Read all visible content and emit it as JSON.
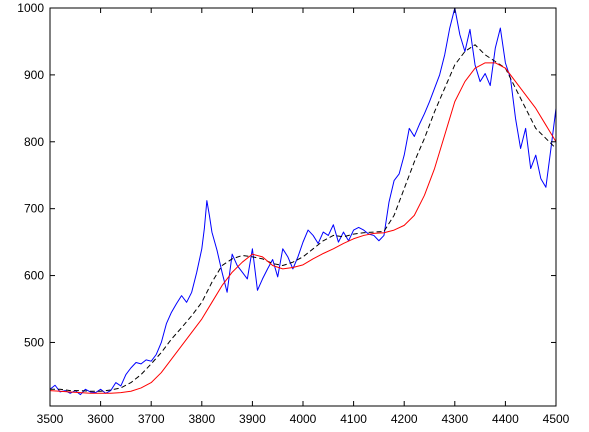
{
  "chart_data": {
    "type": "line",
    "title": "",
    "xlabel": "",
    "ylabel": "",
    "xlim": [
      3500,
      4500
    ],
    "ylim": [
      405,
      1000
    ],
    "grid": false,
    "legend": "none",
    "xticks": [
      3500,
      3600,
      3700,
      3800,
      3900,
      4000,
      4100,
      4200,
      4300,
      4400,
      4500
    ],
    "xtick_labels": [
      "3500",
      "3600",
      "3700",
      "3800",
      "3900",
      "4000",
      "4100",
      "4200",
      "4300",
      "4400",
      "4500"
    ],
    "yticks": [
      500,
      600,
      700,
      800,
      900,
      1000
    ],
    "ytick_labels": [
      "500",
      "600",
      "700",
      "800",
      "900",
      "1000"
    ],
    "series": [
      {
        "color": "#0000ff",
        "style": "solid",
        "x": [
          3500,
          3510,
          3520,
          3530,
          3540,
          3550,
          3560,
          3570,
          3580,
          3590,
          3600,
          3610,
          3620,
          3630,
          3640,
          3650,
          3660,
          3670,
          3680,
          3690,
          3700,
          3710,
          3720,
          3730,
          3740,
          3750,
          3760,
          3770,
          3780,
          3790,
          3800,
          3805,
          3810,
          3815,
          3820,
          3830,
          3840,
          3850,
          3860,
          3870,
          3880,
          3890,
          3900,
          3910,
          3920,
          3930,
          3940,
          3950,
          3960,
          3970,
          3980,
          3990,
          4000,
          4010,
          4020,
          4030,
          4040,
          4050,
          4060,
          4070,
          4080,
          4090,
          4100,
          4110,
          4120,
          4130,
          4140,
          4150,
          4160,
          4170,
          4180,
          4190,
          4200,
          4210,
          4220,
          4230,
          4240,
          4250,
          4260,
          4270,
          4280,
          4290,
          4300,
          4310,
          4320,
          4330,
          4340,
          4350,
          4360,
          4370,
          4380,
          4390,
          4400,
          4410,
          4420,
          4430,
          4440,
          4450,
          4460,
          4470,
          4480,
          4490,
          4500
        ],
        "y": [
          430,
          436,
          426,
          428,
          424,
          428,
          422,
          430,
          426,
          425,
          430,
          424,
          428,
          440,
          435,
          452,
          462,
          470,
          468,
          474,
          472,
          482,
          500,
          528,
          545,
          558,
          570,
          560,
          575,
          605,
          640,
          670,
          712,
          690,
          665,
          638,
          605,
          575,
          632,
          615,
          605,
          595,
          640,
          578,
          595,
          610,
          624,
          598,
          640,
          628,
          610,
          628,
          650,
          668,
          660,
          648,
          665,
          660,
          676,
          650,
          665,
          652,
          668,
          672,
          668,
          662,
          660,
          652,
          660,
          710,
          742,
          752,
          780,
          820,
          808,
          826,
          842,
          860,
          880,
          900,
          930,
          970,
          1000,
          960,
          935,
          968,
          915,
          890,
          902,
          884,
          940,
          970,
          918,
          895,
          835,
          790,
          820,
          760,
          780,
          745,
          732,
          790,
          850
        ]
      },
      {
        "color": "#000000",
        "style": "dashed",
        "x": [
          3500,
          3520,
          3540,
          3560,
          3580,
          3600,
          3620,
          3640,
          3660,
          3680,
          3700,
          3720,
          3740,
          3760,
          3780,
          3800,
          3820,
          3840,
          3860,
          3880,
          3900,
          3920,
          3940,
          3960,
          3980,
          4000,
          4020,
          4040,
          4060,
          4080,
          4100,
          4120,
          4140,
          4160,
          4180,
          4200,
          4220,
          4240,
          4260,
          4280,
          4300,
          4320,
          4340,
          4360,
          4380,
          4400,
          4420,
          4440,
          4460,
          4480,
          4500
        ],
        "y": [
          430,
          430,
          428,
          428,
          427,
          427,
          429,
          432,
          440,
          452,
          468,
          485,
          505,
          522,
          540,
          560,
          590,
          615,
          625,
          630,
          628,
          625,
          618,
          615,
          620,
          628,
          640,
          652,
          660,
          658,
          662,
          664,
          665,
          666,
          690,
          730,
          770,
          805,
          845,
          880,
          915,
          935,
          945,
          930,
          920,
          910,
          880,
          850,
          820,
          805,
          790
        ]
      },
      {
        "color": "#ff0000",
        "style": "solid",
        "x": [
          3500,
          3520,
          3540,
          3560,
          3580,
          3600,
          3620,
          3640,
          3660,
          3680,
          3700,
          3720,
          3740,
          3760,
          3780,
          3800,
          3820,
          3840,
          3860,
          3880,
          3900,
          3920,
          3940,
          3960,
          3980,
          4000,
          4020,
          4040,
          4060,
          4080,
          4100,
          4120,
          4140,
          4160,
          4180,
          4200,
          4220,
          4240,
          4260,
          4280,
          4300,
          4320,
          4340,
          4360,
          4380,
          4400,
          4420,
          4440,
          4460,
          4480,
          4500
        ],
        "y": [
          428,
          427,
          426,
          425,
          424,
          424,
          424,
          425,
          427,
          432,
          440,
          455,
          475,
          495,
          515,
          535,
          560,
          585,
          605,
          620,
          632,
          628,
          615,
          610,
          612,
          616,
          625,
          633,
          640,
          648,
          655,
          660,
          663,
          664,
          668,
          675,
          690,
          720,
          760,
          810,
          860,
          890,
          910,
          918,
          918,
          910,
          890,
          870,
          850,
          825,
          800
        ]
      }
    ]
  }
}
